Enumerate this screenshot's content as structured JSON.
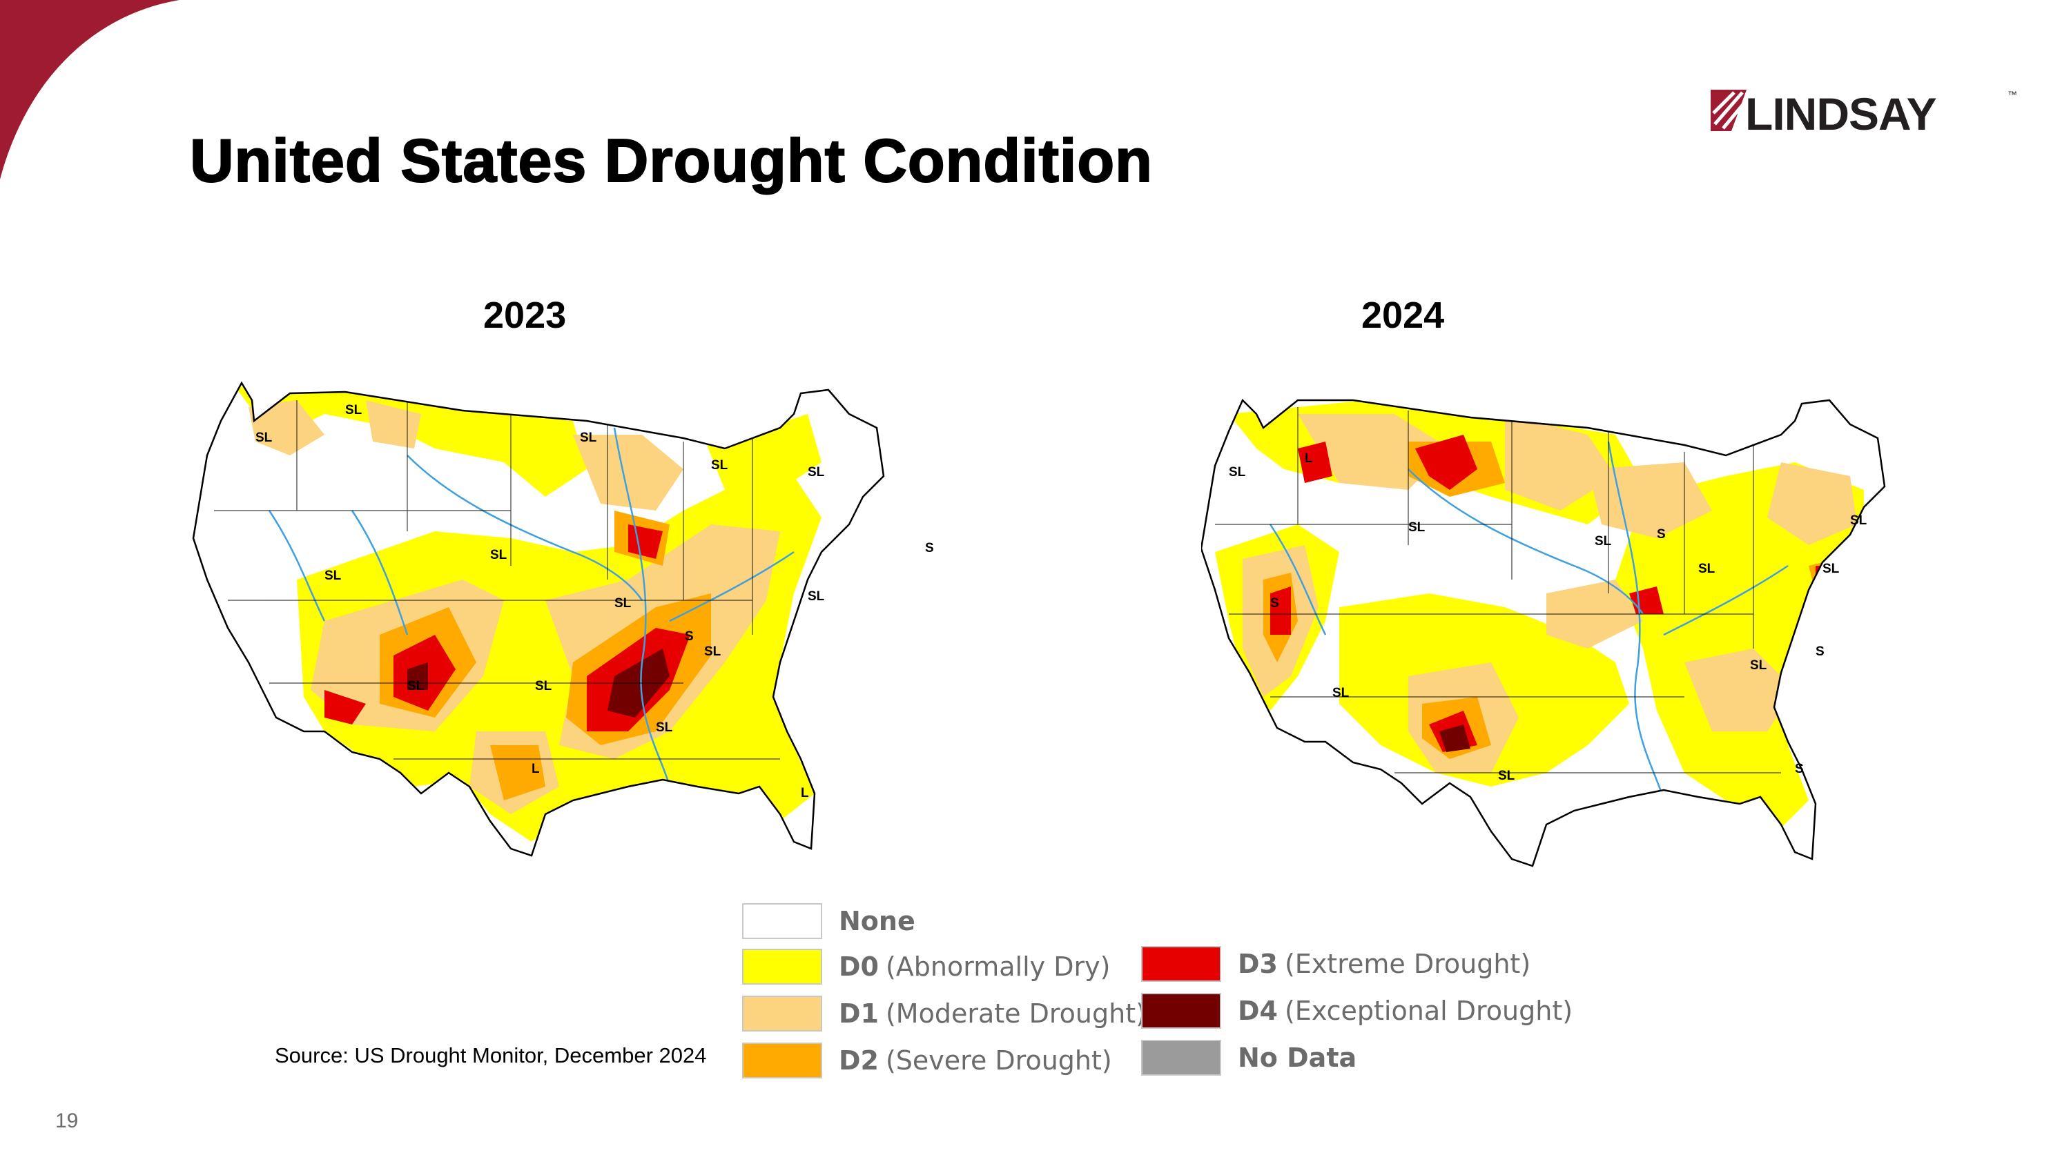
{
  "slide": {
    "title": "United States Drought Condition",
    "page_number": "19",
    "source": "Source: US Drought Monitor, December 2024",
    "accent_color": "#9e1b32"
  },
  "logo": {
    "text": "LINDSAY",
    "trademark": "™",
    "color": "#231f20",
    "mark_color": "#9e1b32"
  },
  "maps": [
    {
      "year": "2023",
      "labels": [
        "SL",
        "SL",
        "SL",
        "SL",
        "SL",
        "SL",
        "SL",
        "SL",
        "SL",
        "SL",
        "SL",
        "SL",
        "SL",
        "S",
        "S",
        "L",
        "L"
      ]
    },
    {
      "year": "2024",
      "labels": [
        "SL",
        "L",
        "SL",
        "SL",
        "SL",
        "SL",
        "SL",
        "SL",
        "SL",
        "SL",
        "S",
        "S",
        "S",
        "S"
      ]
    }
  ],
  "legend": {
    "items": [
      {
        "code": "None",
        "desc": "",
        "color": "#ffffff"
      },
      {
        "code": "D0",
        "desc": "(Abnormally Dry)",
        "color": "#ffff00"
      },
      {
        "code": "D1",
        "desc": "(Moderate Drought)",
        "color": "#fcd37f"
      },
      {
        "code": "D2",
        "desc": "(Severe Drought)",
        "color": "#ffaa00"
      },
      {
        "code": "D3",
        "desc": "(Extreme Drought)",
        "color": "#e60000"
      },
      {
        "code": "D4",
        "desc": "(Exceptional Drought)",
        "color": "#730000"
      },
      {
        "code": "No Data",
        "desc": "",
        "color": "#9b9b9b"
      }
    ]
  }
}
